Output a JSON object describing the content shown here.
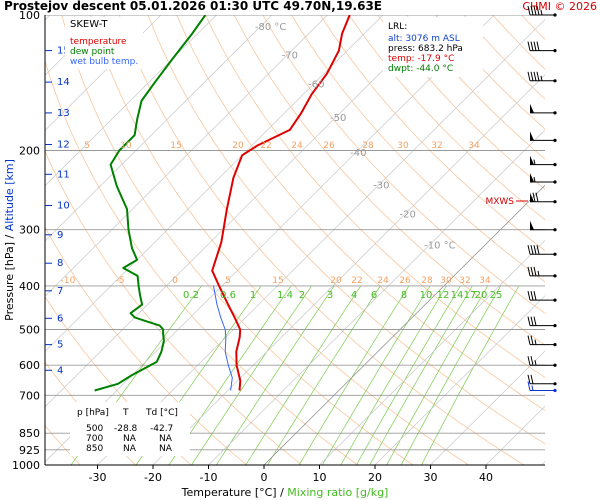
{
  "title": "Prostejov   descent   05.01.2026 01:30 UTC   49.70N,19.63E",
  "copyright": "CHMI © 2026",
  "legend": {
    "title": "SKEW-T",
    "items": [
      {
        "label": "temperature",
        "color": "#e00000"
      },
      {
        "label": "dew point",
        "color": "#008000"
      },
      {
        "label": "wet bulb temp.",
        "color": "#3366ff"
      }
    ]
  },
  "lrl": {
    "heading": "LRL:",
    "alt": "alt: 3076 m ASL",
    "press": "press: 683.2 hPa",
    "temp": "temp: -17.9 °C",
    "dwpt": "dwpt: -44.0 °C"
  },
  "mxws_label": "MXWS",
  "axes": {
    "ylabel_left": "Pressure [hPa]",
    "ylabel_sep": "  /  ",
    "ylabel_right": "Altitude [km]",
    "xlabel_temp": "Temperature [°C]",
    "xlabel_sep": "  /  ",
    "xlabel_mix": "Mixing ratio [g/kg]"
  },
  "table": {
    "headers": [
      "p [hPa]",
      "T",
      "Td [°C]"
    ],
    "rows": [
      [
        "500",
        "-28.8",
        "-42.7"
      ],
      [
        "700",
        "NA",
        "NA"
      ],
      [
        "850",
        "NA",
        "NA"
      ]
    ]
  },
  "chart_data": {
    "type": "line",
    "subtype": "skew-t log-p",
    "y_scale": "log",
    "ylim": [
      1000,
      100
    ],
    "xlim": [
      -35,
      45
    ],
    "grid": true,
    "pressure_ticks": [
      {
        "p": 100,
        "label": "100"
      },
      {
        "p": 200,
        "label": "200"
      },
      {
        "p": 300,
        "label": "300"
      },
      {
        "p": 400,
        "label": "400"
      },
      {
        "p": 500,
        "label": "500"
      },
      {
        "p": 600,
        "label": "600"
      },
      {
        "p": 700,
        "label": "700"
      },
      {
        "p": 850,
        "label": "850"
      },
      {
        "p": 925,
        "label": "925"
      },
      {
        "p": 1000,
        "label": "1000"
      }
    ],
    "temperature_ticks": [
      {
        "t": -30,
        "label": "-30"
      },
      {
        "t": -20,
        "label": "-20"
      },
      {
        "t": -10,
        "label": "-10"
      },
      {
        "t": 0,
        "label": "0"
      },
      {
        "t": 10,
        "label": "10"
      },
      {
        "t": 20,
        "label": "20"
      },
      {
        "t": 30,
        "label": "30"
      },
      {
        "t": 40,
        "label": "40"
      }
    ],
    "altitude_ticks": [
      {
        "km": 4,
        "p": 616,
        "label": "4"
      },
      {
        "km": 5,
        "p": 540,
        "label": "5"
      },
      {
        "km": 6,
        "p": 472,
        "label": "6"
      },
      {
        "km": 7,
        "p": 410,
        "label": "7"
      },
      {
        "km": 8,
        "p": 356,
        "label": "8"
      },
      {
        "km": 9,
        "p": 308,
        "label": "9"
      },
      {
        "km": 10,
        "p": 265,
        "label": "10"
      },
      {
        "km": 11,
        "p": 226,
        "label": "11"
      },
      {
        "km": 12,
        "p": 194,
        "label": "12"
      },
      {
        "km": 13,
        "p": 165,
        "label": "13"
      },
      {
        "km": 14,
        "p": 141,
        "label": "14"
      },
      {
        "km": 15,
        "p": 120,
        "label": "15"
      }
    ],
    "isotherm_labels": [
      {
        "t": -80,
        "p": 108,
        "label": "-80 °C"
      },
      {
        "t": -70,
        "p": 125,
        "label": "-70"
      },
      {
        "t": -60,
        "p": 145,
        "label": "-60"
      },
      {
        "t": -50,
        "p": 172,
        "label": "-50"
      },
      {
        "t": -40,
        "p": 206,
        "label": "-40"
      },
      {
        "t": -30,
        "p": 243,
        "label": "-30"
      },
      {
        "t": -20,
        "p": 282,
        "label": "-20"
      },
      {
        "t": -10,
        "p": 330,
        "label": "-10 °C"
      }
    ],
    "saturation_labels_top": [
      "5",
      "10",
      "15",
      "20",
      "22",
      "24",
      "26",
      "28",
      "30",
      "32",
      "34"
    ],
    "saturation_labels_mid": [
      "-10",
      "-5",
      "0",
      "5",
      "15",
      "20",
      "22",
      "24",
      "26",
      "28",
      "30",
      "32",
      "34"
    ],
    "mixing_ratio_labels": [
      "0.2",
      "0.6",
      "1",
      "1.4",
      "2",
      "3",
      "4",
      "6",
      "8",
      "10",
      "12",
      "14",
      "17",
      "20",
      "25"
    ],
    "series": [
      {
        "name": "temperature",
        "color": "#e00000",
        "points": [
          {
            "p": 683,
            "t": -17.9
          },
          {
            "p": 650,
            "t": -19.5
          },
          {
            "p": 600,
            "t": -23.0
          },
          {
            "p": 560,
            "t": -25.5
          },
          {
            "p": 520,
            "t": -27.5
          },
          {
            "p": 500,
            "t": -28.8
          },
          {
            "p": 470,
            "t": -32.0
          },
          {
            "p": 440,
            "t": -35.5
          },
          {
            "p": 400,
            "t": -40.5
          },
          {
            "p": 370,
            "t": -44.5
          },
          {
            "p": 320,
            "t": -48.0
          },
          {
            "p": 270,
            "t": -53.0
          },
          {
            "p": 230,
            "t": -57.5
          },
          {
            "p": 205,
            "t": -60.0
          },
          {
            "p": 195,
            "t": -59.0
          },
          {
            "p": 180,
            "t": -56.0
          },
          {
            "p": 165,
            "t": -57.0
          },
          {
            "p": 150,
            "t": -58.5
          },
          {
            "p": 135,
            "t": -59.5
          },
          {
            "p": 120,
            "t": -61.5
          },
          {
            "p": 110,
            "t": -64.0
          },
          {
            "p": 100,
            "t": -66.0
          }
        ]
      },
      {
        "name": "dew point",
        "color": "#008000",
        "points": [
          {
            "p": 683,
            "t": -44.0
          },
          {
            "p": 660,
            "t": -41.0
          },
          {
            "p": 630,
            "t": -40.0
          },
          {
            "p": 590,
            "t": -38.0
          },
          {
            "p": 560,
            "t": -39.0
          },
          {
            "p": 530,
            "t": -40.5
          },
          {
            "p": 510,
            "t": -42.0
          },
          {
            "p": 500,
            "t": -42.7
          },
          {
            "p": 490,
            "t": -44.0
          },
          {
            "p": 480,
            "t": -47.0
          },
          {
            "p": 470,
            "t": -50.0
          },
          {
            "p": 460,
            "t": -51.5
          },
          {
            "p": 440,
            "t": -51.0
          },
          {
            "p": 420,
            "t": -53.0
          },
          {
            "p": 400,
            "t": -55.0
          },
          {
            "p": 380,
            "t": -57.0
          },
          {
            "p": 365,
            "t": -61.0
          },
          {
            "p": 350,
            "t": -60.0
          },
          {
            "p": 330,
            "t": -63.0
          },
          {
            "p": 300,
            "t": -67.0
          },
          {
            "p": 270,
            "t": -71.0
          },
          {
            "p": 240,
            "t": -77.0
          },
          {
            "p": 215,
            "t": -82.0
          },
          {
            "p": 200,
            "t": -83.0
          },
          {
            "p": 185,
            "t": -83.0
          },
          {
            "p": 170,
            "t": -85.5
          },
          {
            "p": 155,
            "t": -88.0
          },
          {
            "p": 140,
            "t": -89.0
          },
          {
            "p": 125,
            "t": -90.0
          },
          {
            "p": 110,
            "t": -91.0
          },
          {
            "p": 100,
            "t": -92.0
          }
        ]
      },
      {
        "name": "wet bulb temp.",
        "color": "#3366ff",
        "points": [
          {
            "p": 683,
            "t": -19.5
          },
          {
            "p": 640,
            "t": -21.5
          },
          {
            "p": 600,
            "t": -24.5
          },
          {
            "p": 560,
            "t": -27.5
          },
          {
            "p": 520,
            "t": -30.0
          },
          {
            "p": 500,
            "t": -31.5
          },
          {
            "p": 470,
            "t": -34.5
          },
          {
            "p": 440,
            "t": -37.5
          },
          {
            "p": 400,
            "t": -41.5
          }
        ]
      }
    ],
    "wind_barbs": [
      {
        "p": 100,
        "speed_kt": 45,
        "dir_deg": 270
      },
      {
        "p": 120,
        "speed_kt": 40,
        "dir_deg": 265
      },
      {
        "p": 140,
        "speed_kt": 45,
        "dir_deg": 270
      },
      {
        "p": 165,
        "speed_kt": 50,
        "dir_deg": 270
      },
      {
        "p": 190,
        "speed_kt": 50,
        "dir_deg": 275
      },
      {
        "p": 215,
        "speed_kt": 55,
        "dir_deg": 275
      },
      {
        "p": 235,
        "speed_kt": 55,
        "dir_deg": 270
      },
      {
        "p": 260,
        "speed_kt": 70,
        "dir_deg": 270
      },
      {
        "p": 300,
        "speed_kt": 50,
        "dir_deg": 270
      },
      {
        "p": 340,
        "speed_kt": 40,
        "dir_deg": 265
      },
      {
        "p": 380,
        "speed_kt": 35,
        "dir_deg": 260
      },
      {
        "p": 430,
        "speed_kt": 30,
        "dir_deg": 260
      },
      {
        "p": 490,
        "speed_kt": 30,
        "dir_deg": 255
      },
      {
        "p": 540,
        "speed_kt": 25,
        "dir_deg": 255
      },
      {
        "p": 600,
        "speed_kt": 25,
        "dir_deg": 250
      },
      {
        "p": 660,
        "speed_kt": 20,
        "dir_deg": 250
      },
      {
        "p": 683,
        "speed_kt": 15,
        "dir_deg": 240
      }
    ],
    "mxws": {
      "p": 260,
      "speed_kt": 70
    }
  }
}
